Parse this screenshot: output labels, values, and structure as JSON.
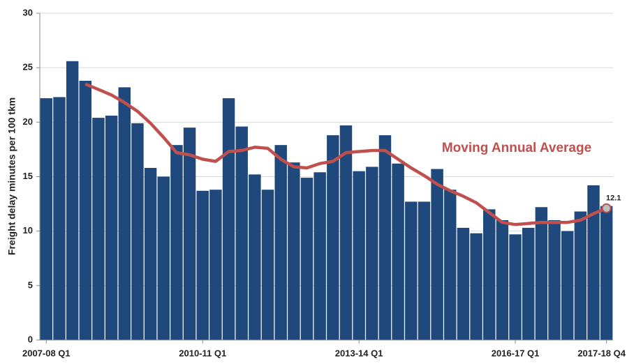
{
  "chart_data": {
    "type": "bar",
    "y_axis_label": "Freight delay minutes per 100 tkm",
    "categories": [
      "2007-08 Q1",
      null,
      null,
      null,
      null,
      null,
      null,
      null,
      null,
      null,
      null,
      null,
      "2010-11 Q1",
      null,
      null,
      null,
      null,
      null,
      null,
      null,
      null,
      null,
      null,
      null,
      "2013-14 Q1",
      null,
      null,
      null,
      null,
      null,
      null,
      null,
      null,
      null,
      null,
      null,
      "2016-17 Q1",
      null,
      null,
      null,
      null,
      null,
      null,
      "2017-18 Q4"
    ],
    "series": [
      {
        "type": "bar",
        "color": "#1f497d",
        "values": [
          22.2,
          22.3,
          25.6,
          23.8,
          20.4,
          20.6,
          23.2,
          19.9,
          15.8,
          15.0,
          17.9,
          19.5,
          13.7,
          13.8,
          22.2,
          19.6,
          15.2,
          13.8,
          17.9,
          16.3,
          14.9,
          15.4,
          18.8,
          19.7,
          15.5,
          15.9,
          18.8,
          16.2,
          12.7,
          12.7,
          15.7,
          13.8,
          10.3,
          9.8,
          12.0,
          11.0,
          9.7,
          10.3,
          12.2,
          11.0,
          10.0,
          11.8,
          14.2,
          12.3
        ]
      },
      {
        "type": "line",
        "name": "Moving Annual Average",
        "color": "#c0504d",
        "values": [
          null,
          null,
          null,
          23.5,
          23.0,
          22.5,
          21.8,
          21.0,
          19.9,
          18.6,
          17.2,
          17.0,
          16.6,
          16.4,
          17.3,
          17.4,
          17.7,
          17.6,
          16.6,
          15.9,
          15.8,
          16.2,
          16.4,
          17.2,
          17.3,
          17.4,
          17.4,
          16.6,
          15.8,
          15.1,
          14.3,
          13.7,
          13.2,
          12.6,
          11.7,
          10.8,
          10.6,
          10.7,
          10.8,
          10.8,
          10.8,
          11.0,
          11.6,
          12.1
        ]
      }
    ],
    "ylim": [
      0,
      30
    ],
    "yticks": [
      0,
      5,
      10,
      15,
      20,
      25,
      30
    ],
    "grid": true
  }
}
